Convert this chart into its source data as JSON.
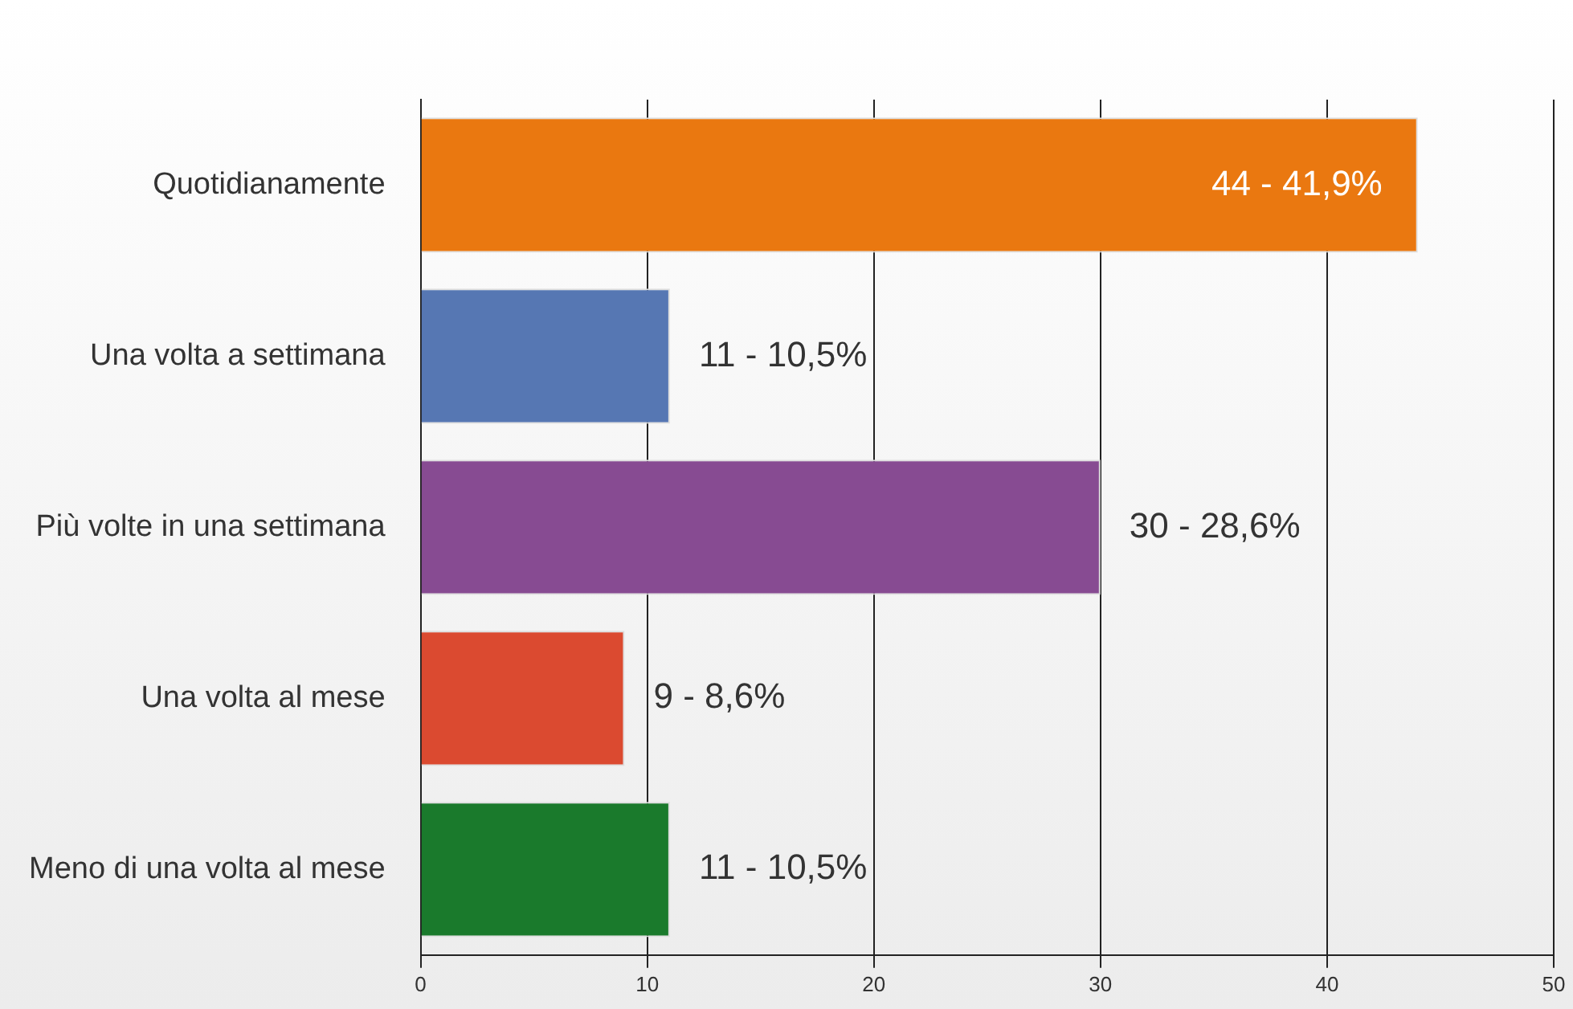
{
  "chart_data": {
    "type": "bar",
    "orientation": "horizontal",
    "categories": [
      "Quotidianamente",
      "Una volta a settimana",
      "Più volte in una settimana",
      "Una volta al mese",
      "Meno di una volta al mese"
    ],
    "values": [
      44,
      11,
      30,
      9,
      11
    ],
    "colors": [
      "#ea7810",
      "#5677b3",
      "#874b92",
      "#db4a30",
      "#1a7a2c"
    ],
    "value_labels": [
      "44 - 41,9%",
      "11 - 10,5%",
      "30 - 28,6%",
      "9 - 8,6%",
      "11 - 10,5%"
    ],
    "xlim": [
      0,
      50
    ],
    "xticks": [
      0,
      10,
      20,
      30,
      40,
      50
    ],
    "grid": "x",
    "legend": false
  }
}
